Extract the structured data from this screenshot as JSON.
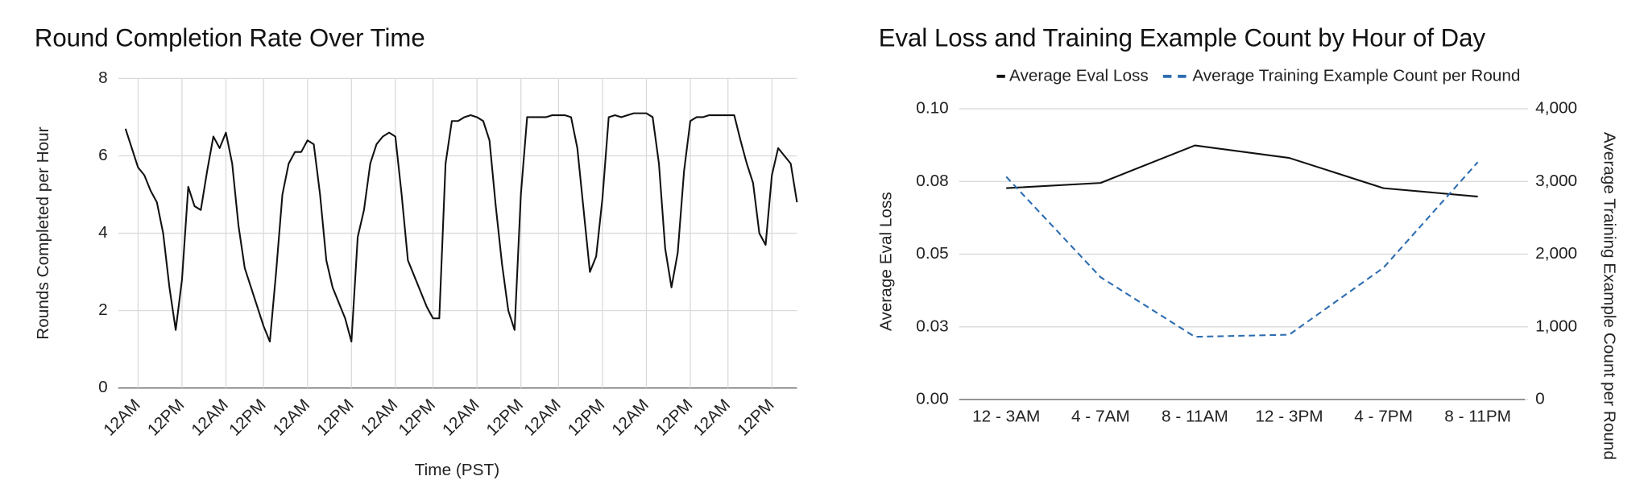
{
  "chart_data": [
    {
      "type": "line",
      "title": "Round Completion Rate Over Time",
      "y_label": "Rounds Completed per Hour",
      "x_label": "Time (PST)",
      "categories": [
        null,
        null,
        "12AM",
        null,
        null,
        null,
        null,
        null,
        null,
        "12PM",
        null,
        null,
        null,
        null,
        null,
        null,
        "12AM",
        null,
        null,
        null,
        null,
        null,
        "12PM",
        null,
        null,
        null,
        null,
        null,
        null,
        "12AM",
        null,
        null,
        null,
        null,
        null,
        null,
        "12PM",
        null,
        null,
        null,
        null,
        null,
        null,
        "12AM",
        null,
        null,
        null,
        null,
        null,
        "12PM",
        null,
        null,
        null,
        null,
        null,
        null,
        "12AM",
        null,
        null,
        null,
        null,
        null,
        null,
        "12PM",
        null,
        null,
        null,
        null,
        null,
        "12AM",
        null,
        null,
        null,
        null,
        null,
        null,
        "12PM",
        null,
        null,
        null,
        null,
        null,
        null,
        "12AM",
        null,
        null,
        null,
        null,
        null,
        null,
        "12PM",
        null,
        null,
        null,
        null,
        null,
        "12AM",
        null,
        null,
        null,
        null,
        null,
        null,
        "12PM",
        null,
        null,
        null,
        null
      ],
      "values": [
        6.7,
        6.2,
        5.7,
        5.5,
        5.1,
        4.8,
        4.0,
        2.6,
        1.5,
        2.8,
        5.2,
        4.7,
        4.6,
        5.6,
        6.5,
        6.2,
        6.6,
        5.8,
        4.2,
        3.1,
        2.6,
        2.1,
        1.6,
        1.2,
        3.0,
        5.0,
        5.8,
        6.1,
        6.1,
        6.4,
        6.3,
        5.0,
        3.3,
        2.6,
        2.2,
        1.8,
        1.2,
        3.9,
        4.6,
        5.8,
        6.3,
        6.5,
        6.6,
        6.5,
        5.0,
        3.3,
        2.9,
        2.5,
        2.1,
        1.8,
        1.8,
        5.8,
        6.9,
        6.9,
        7.0,
        7.05,
        7.0,
        6.9,
        6.4,
        4.7,
        3.2,
        2.0,
        1.5,
        5.0,
        7.0,
        7.0,
        7.0,
        7.0,
        7.05,
        7.05,
        7.05,
        7.0,
        6.2,
        4.6,
        3.0,
        3.4,
        4.9,
        7.0,
        7.05,
        7.0,
        7.05,
        7.1,
        7.1,
        7.1,
        7.0,
        5.8,
        3.6,
        2.6,
        3.5,
        5.6,
        6.9,
        7.0,
        7.0,
        7.05,
        7.05,
        7.05,
        7.05,
        7.05,
        6.4,
        5.8,
        5.3,
        4.0,
        3.7,
        5.5,
        6.2,
        6.0,
        5.8,
        4.8
      ],
      "color": "#111111",
      "ylim": [
        0,
        8
      ],
      "yticks": [
        0,
        2,
        4,
        6,
        8
      ],
      "grid": true
    },
    {
      "type": "line",
      "title": "Eval Loss and Training Example Count by Hour of Day",
      "y_label": "Average Eval Loss",
      "y2_label": "Average Training Example Count per Round",
      "legend": "top",
      "categories": [
        "12 - 3AM",
        "4 - 7AM",
        "8 - 11AM",
        "12 - 3PM",
        "4 - 7PM",
        "8 - 11PM"
      ],
      "series": [
        {
          "name": "Average Eval Loss",
          "color": "#111111",
          "values": [
            0.0727,
            0.0745,
            0.0874,
            0.0831,
            0.0727,
            0.0698
          ]
        },
        {
          "name": "Average Training Example Count per Round",
          "color": "#2b6cb0",
          "dashed": true,
          "axis": "y2",
          "values": [
            3065,
            1683,
            863,
            892,
            1813,
            3266
          ]
        }
      ],
      "ylim": [
        0,
        0.1
      ],
      "yticks": [
        {
          "value": 0,
          "label": "0.00"
        },
        {
          "value": 0.025,
          "label": "0.03"
        },
        0.05,
        {
          "value": 0.075,
          "label": "0.08"
        },
        {
          "value": 0.1,
          "label": "0.10"
        }
      ],
      "y2lim": [
        0,
        4000
      ],
      "y2ticks": [
        0,
        {
          "value": 1000,
          "label": "1,000"
        },
        {
          "value": 2000,
          "label": "2,000"
        },
        {
          "value": 3000,
          "label": "3,000"
        },
        {
          "value": 4000,
          "label": "4,000"
        }
      ],
      "grid": true
    }
  ]
}
